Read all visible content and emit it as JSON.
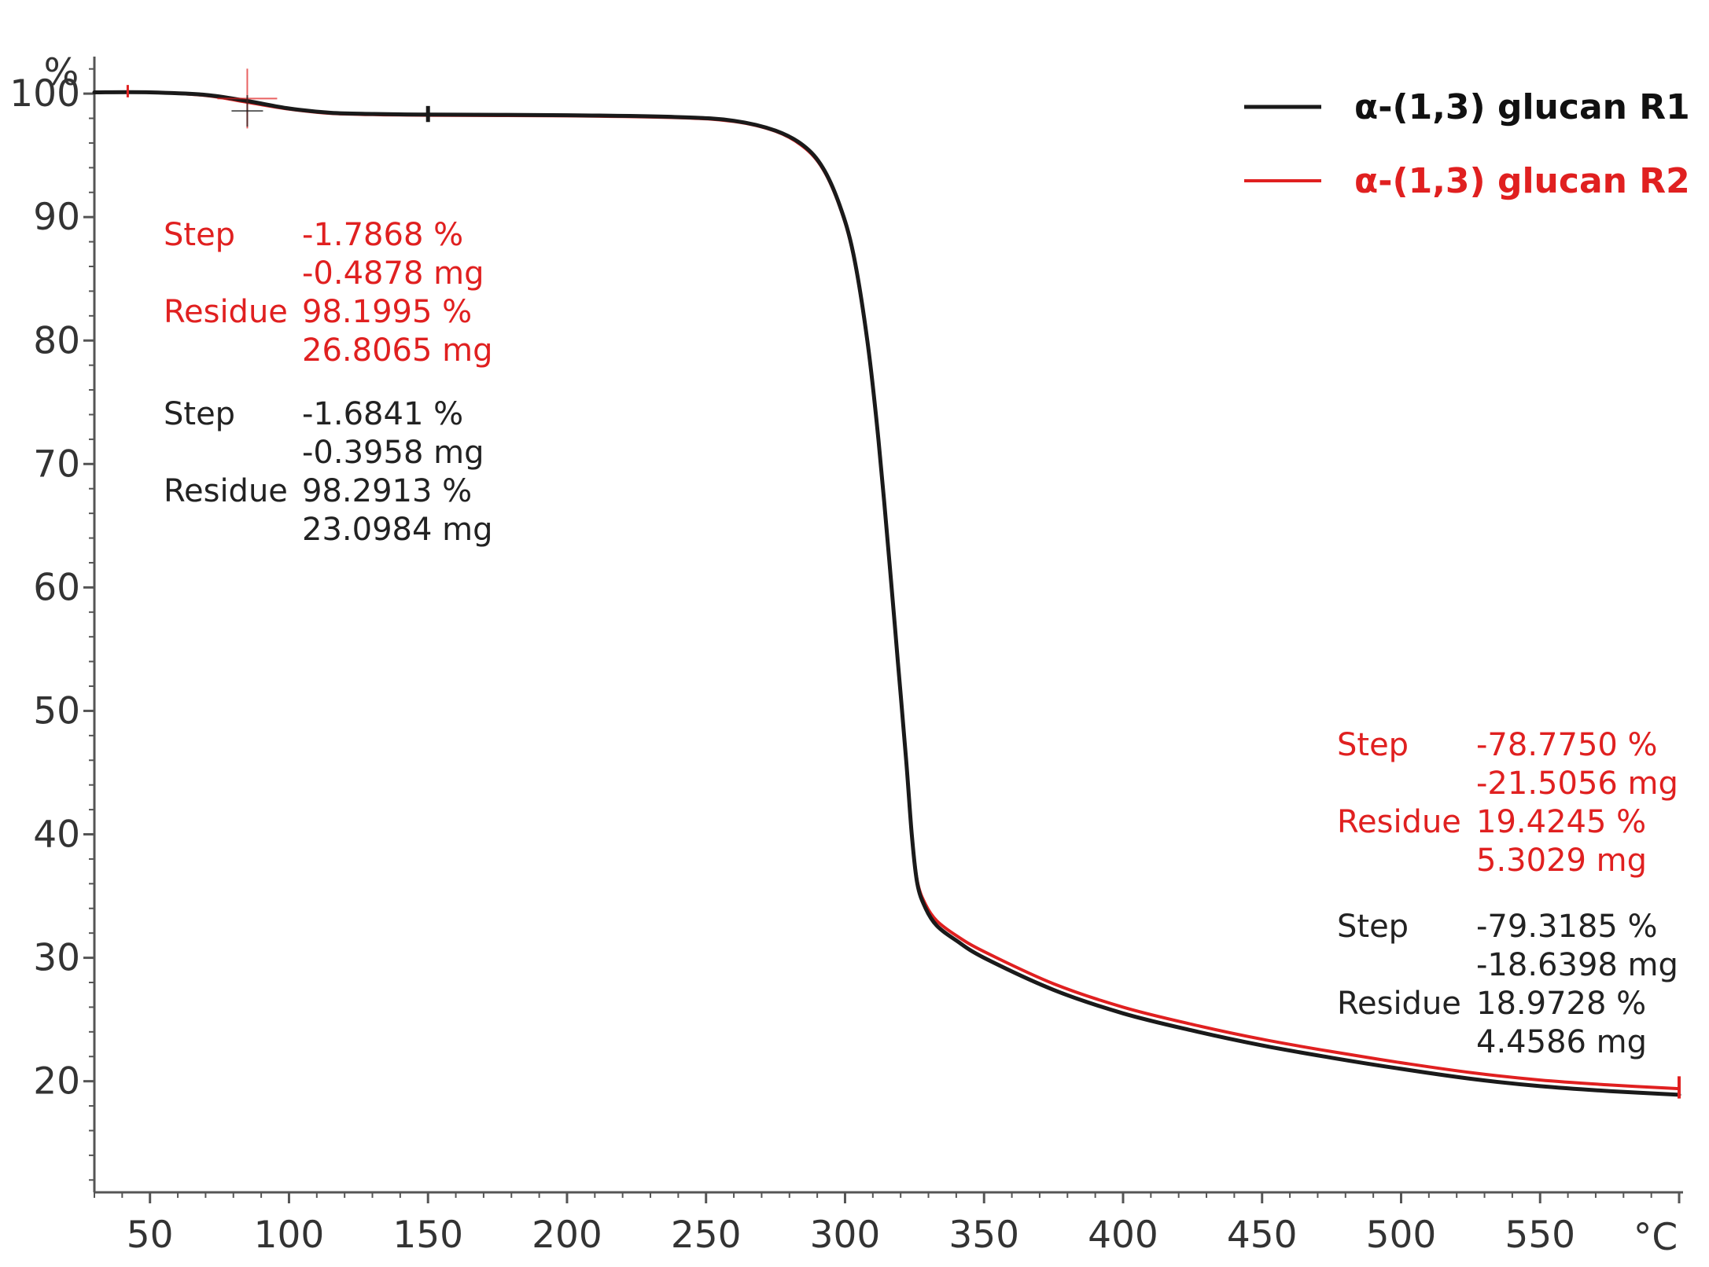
{
  "chart_data": {
    "type": "line",
    "title": "",
    "xlabel": "",
    "ylabel": "",
    "x_unit": "°C",
    "y_unit": "%",
    "xlim": [
      30,
      600
    ],
    "ylim": [
      11,
      103
    ],
    "x_ticks": [
      50,
      100,
      150,
      200,
      250,
      300,
      350,
      400,
      450,
      500,
      550
    ],
    "y_ticks": [
      20,
      30,
      40,
      50,
      60,
      70,
      80,
      90,
      100
    ],
    "grid": false,
    "legend_position": "top-right",
    "series": [
      {
        "name": "α-(1,3) glucan R1",
        "color": "#1a1a1a",
        "points": [
          [
            30,
            100.1
          ],
          [
            50,
            100.1
          ],
          [
            70,
            99.9
          ],
          [
            85,
            99.4
          ],
          [
            100,
            98.8
          ],
          [
            115,
            98.45
          ],
          [
            130,
            98.35
          ],
          [
            150,
            98.3
          ],
          [
            200,
            98.25
          ],
          [
            240,
            98.1
          ],
          [
            260,
            97.8
          ],
          [
            275,
            97.0
          ],
          [
            285,
            95.8
          ],
          [
            292,
            94.0
          ],
          [
            298,
            91.0
          ],
          [
            303,
            87.0
          ],
          [
            308,
            80.0
          ],
          [
            312,
            72.0
          ],
          [
            316,
            62.0
          ],
          [
            319,
            54.0
          ],
          [
            322,
            46.0
          ],
          [
            324,
            40.0
          ],
          [
            326,
            36.0
          ],
          [
            329,
            34.0
          ],
          [
            333,
            32.6
          ],
          [
            340,
            31.4
          ],
          [
            350,
            30.0
          ],
          [
            375,
            27.4
          ],
          [
            400,
            25.5
          ],
          [
            425,
            24.1
          ],
          [
            450,
            22.9
          ],
          [
            475,
            21.9
          ],
          [
            500,
            21.0
          ],
          [
            525,
            20.2
          ],
          [
            550,
            19.6
          ],
          [
            575,
            19.2
          ],
          [
            600,
            18.9
          ]
        ]
      },
      {
        "name": "α-(1,3) glucan R2",
        "color": "#e02020",
        "points": [
          [
            30,
            100.1
          ],
          [
            50,
            100.1
          ],
          [
            70,
            99.85
          ],
          [
            85,
            99.3
          ],
          [
            100,
            98.75
          ],
          [
            115,
            98.4
          ],
          [
            130,
            98.3
          ],
          [
            150,
            98.25
          ],
          [
            200,
            98.2
          ],
          [
            240,
            98.05
          ],
          [
            260,
            97.75
          ],
          [
            275,
            96.95
          ],
          [
            285,
            95.7
          ],
          [
            292,
            93.9
          ],
          [
            298,
            90.9
          ],
          [
            303,
            86.9
          ],
          [
            308,
            79.9
          ],
          [
            312,
            71.9
          ],
          [
            316,
            61.9
          ],
          [
            319,
            53.9
          ],
          [
            322,
            45.9
          ],
          [
            324,
            40.0
          ],
          [
            326,
            36.2
          ],
          [
            329,
            34.3
          ],
          [
            333,
            33.0
          ],
          [
            340,
            31.8
          ],
          [
            350,
            30.5
          ],
          [
            375,
            27.9
          ],
          [
            400,
            26.0
          ],
          [
            425,
            24.6
          ],
          [
            450,
            23.4
          ],
          [
            475,
            22.4
          ],
          [
            500,
            21.5
          ],
          [
            525,
            20.7
          ],
          [
            550,
            20.1
          ],
          [
            575,
            19.7
          ],
          [
            600,
            19.4
          ]
        ]
      }
    ],
    "annotations": [
      {
        "color": "#e02020",
        "anchor": "upper-left",
        "rows": [
          [
            "Step",
            "-1.7868 %"
          ],
          [
            "",
            "-0.4878 mg"
          ],
          [
            "Residue",
            "98.1995 %"
          ],
          [
            "",
            "26.8065 mg"
          ]
        ]
      },
      {
        "color": "#222222",
        "anchor": "upper-left",
        "rows": [
          [
            "Step",
            "-1.6841 %"
          ],
          [
            "",
            "-0.3958 mg"
          ],
          [
            "Residue",
            "98.2913 %"
          ],
          [
            "",
            "23.0984 mg"
          ]
        ]
      },
      {
        "color": "#e02020",
        "anchor": "right",
        "rows": [
          [
            "Step",
            "-78.7750 %"
          ],
          [
            "",
            "-21.5056 mg"
          ],
          [
            "Residue",
            "19.4245 %"
          ],
          [
            "",
            "5.3029 mg"
          ]
        ]
      },
      {
        "color": "#222222",
        "anchor": "right",
        "rows": [
          [
            "Step",
            "-79.3185 %"
          ],
          [
            "",
            "-18.6398 mg"
          ],
          [
            "Residue",
            "18.9728 %"
          ],
          [
            "",
            "4.4586 mg"
          ]
        ]
      }
    ]
  }
}
